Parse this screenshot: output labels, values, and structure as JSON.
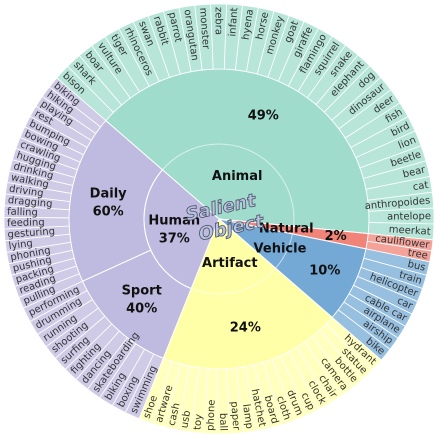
{
  "chart_data": {
    "type": "sunburst",
    "center_label": [
      "Salient",
      "Object"
    ],
    "categories": [
      {
        "name": "Animal",
        "value": 49,
        "value_label": "49%",
        "color": "#9fdccb",
        "leaves": [
          "bison",
          "shark",
          "boar",
          "vulture",
          "tiger",
          "rhinoceros",
          "swan",
          "rabbit",
          "parrot",
          "orangutan",
          "monster",
          "zebra",
          "infant",
          "hyena",
          "horse",
          "monkey",
          "goat",
          "giraffe",
          "flamingo",
          "squirrel",
          "snake",
          "elephant",
          "dog",
          "dinosaur",
          "deer",
          "fish",
          "bird",
          "lion",
          "beetle",
          "bear",
          "cat",
          "anthropoides",
          "antelope",
          "meerkat"
        ]
      },
      {
        "name": "Natural",
        "value": 2,
        "value_label": "2%",
        "color": "#f08478",
        "leaves": [
          "cauliflower",
          "tree"
        ]
      },
      {
        "name": "Vehicle",
        "value": 10,
        "value_label": "10%",
        "color": "#74a9d6",
        "leaves": [
          "bus",
          "train",
          "helicopter",
          "car",
          "cable car",
          "airplane",
          "airship",
          "bike"
        ]
      },
      {
        "name": "Artifact",
        "value": 24,
        "value_label": "24%",
        "color": "#ffffa8",
        "leaves": [
          "hydrant",
          "statue",
          "bottle",
          "camera",
          "chair",
          "clock",
          "cup",
          "drum",
          "cloth",
          "board",
          "hatchet",
          "lamp",
          "paper",
          "ball",
          "phone",
          "toy",
          "usb",
          "cash",
          "artware",
          "shoe"
        ]
      },
      {
        "name": "Human",
        "value": 37,
        "value_label": "37%",
        "color": "#bfbadf",
        "children": [
          {
            "name": "Sport",
            "value": 40,
            "value_label": "40%",
            "leaves": [
              "swimming",
              "boxing",
              "biking",
              "skateboarding",
              "dancing",
              "fighting",
              "surfing",
              "shooting",
              "running",
              "drumming",
              "performing"
            ]
          },
          {
            "name": "Daily",
            "value": 60,
            "value_label": "60%",
            "leaves": [
              "pulling",
              "reading",
              "packing",
              "pushing",
              "phoning",
              "lying",
              "gesturing",
              "feeding",
              "falling",
              "dragging",
              "driving",
              "walking",
              "drinking",
              "hugging",
              "crawling",
              "bowing",
              "bumping",
              "rest",
              "playing",
              "hiking",
              "biking"
            ]
          }
        ]
      }
    ]
  }
}
